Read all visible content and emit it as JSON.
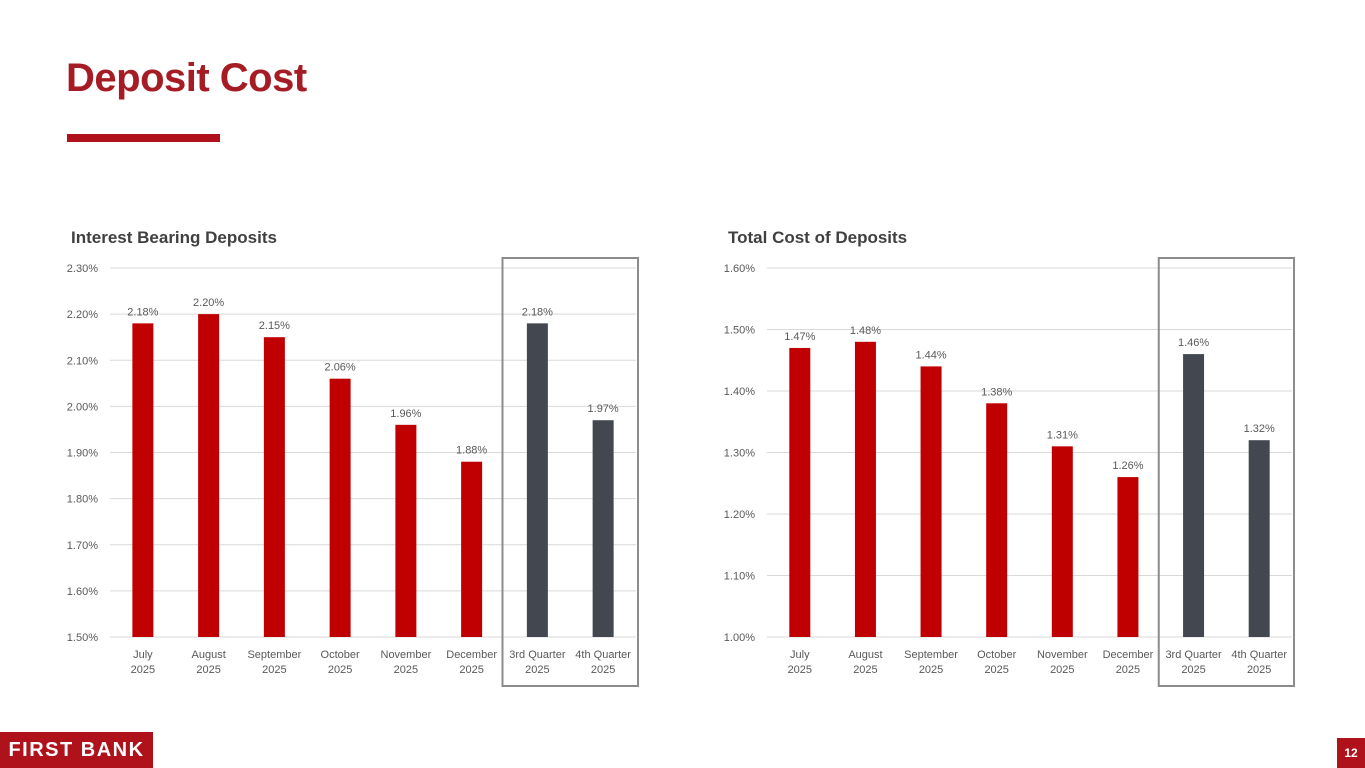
{
  "page": {
    "title": "Deposit Cost",
    "page_number": "12",
    "logo_text": "FIRST BANK"
  },
  "colors": {
    "brand": "#b0121b",
    "bar_month": "#c00000",
    "bar_quarter": "#434850",
    "highlight_box": "#8c8c8c",
    "gridline": "#d9d9d9",
    "label": "#595959"
  },
  "chart_data": [
    {
      "type": "bar",
      "title": "Interest Bearing Deposits",
      "categories": [
        [
          "July",
          "2025"
        ],
        [
          "August",
          "2025"
        ],
        [
          "September",
          "2025"
        ],
        [
          "October",
          "2025"
        ],
        [
          "November",
          "2025"
        ],
        [
          "December",
          "2025"
        ],
        [
          "3rd Quarter",
          "2025"
        ],
        [
          "4th Quarter",
          "2025"
        ]
      ],
      "values": [
        2.18,
        2.2,
        2.15,
        2.06,
        1.96,
        1.88,
        2.18,
        1.97
      ],
      "value_labels": [
        "2.18%",
        "2.20%",
        "2.15%",
        "2.06%",
        "1.96%",
        "1.88%",
        "2.18%",
        "1.97%"
      ],
      "bar_kind": [
        "month",
        "month",
        "month",
        "month",
        "month",
        "month",
        "quarter",
        "quarter"
      ],
      "y_ticks": [
        1.5,
        1.6,
        1.7,
        1.8,
        1.9,
        2.0,
        2.1,
        2.2,
        2.3
      ],
      "y_tick_labels": [
        "1.50%",
        "1.60%",
        "1.70%",
        "1.80%",
        "1.90%",
        "2.00%",
        "2.10%",
        "2.20%",
        "2.30%"
      ],
      "ylim": [
        1.5,
        2.3
      ],
      "highlighted_categories": [
        6,
        7
      ],
      "xlabel": "",
      "ylabel": "",
      "grid": true
    },
    {
      "type": "bar",
      "title": "Total Cost of Deposits",
      "categories": [
        [
          "July",
          "2025"
        ],
        [
          "August",
          "2025"
        ],
        [
          "September",
          "2025"
        ],
        [
          "October",
          "2025"
        ],
        [
          "November",
          "2025"
        ],
        [
          "December",
          "2025"
        ],
        [
          "3rd Quarter",
          "2025"
        ],
        [
          "4th Quarter",
          "2025"
        ]
      ],
      "values": [
        1.47,
        1.48,
        1.44,
        1.38,
        1.31,
        1.26,
        1.46,
        1.32
      ],
      "value_labels": [
        "1.47%",
        "1.48%",
        "1.44%",
        "1.38%",
        "1.31%",
        "1.26%",
        "1.46%",
        "1.32%"
      ],
      "bar_kind": [
        "month",
        "month",
        "month",
        "month",
        "month",
        "month",
        "quarter",
        "quarter"
      ],
      "y_ticks": [
        1.0,
        1.1,
        1.2,
        1.3,
        1.4,
        1.5,
        1.6
      ],
      "y_tick_labels": [
        "1.00%",
        "1.10%",
        "1.20%",
        "1.30%",
        "1.40%",
        "1.50%",
        "1.60%"
      ],
      "ylim": [
        1.0,
        1.6
      ],
      "highlighted_categories": [
        6,
        7
      ],
      "xlabel": "",
      "ylabel": "",
      "grid": true
    }
  ]
}
